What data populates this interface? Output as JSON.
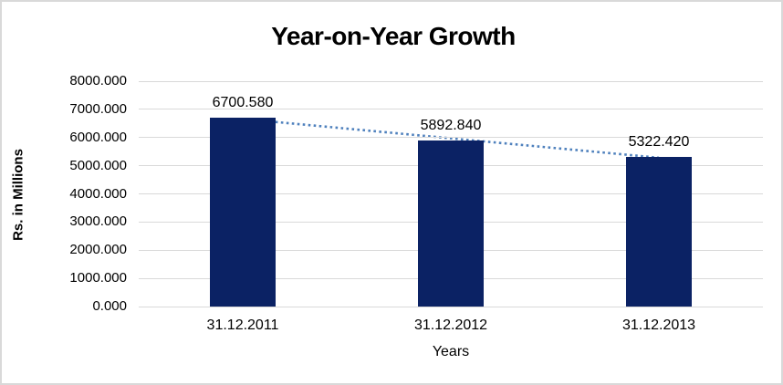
{
  "window": {
    "background": "#ffffff",
    "border_color": "#d9d9d9"
  },
  "chart_data": {
    "type": "bar",
    "title": "Year-on-Year Growth",
    "xlabel": "Years",
    "ylabel": "Rs. in Millions",
    "categories": [
      "31.12.2011",
      "31.12.2012",
      "31.12.2013"
    ],
    "values": [
      6700.58,
      5892.84,
      5322.42
    ],
    "value_labels": [
      "6700.580",
      "5892.840",
      "5322.420"
    ],
    "ylim": [
      0,
      8000
    ],
    "y_tick_step": 1000,
    "y_tick_labels": [
      "0.000",
      "1000.000",
      "2000.000",
      "3000.000",
      "4000.000",
      "5000.000",
      "6000.000",
      "7000.000",
      "8000.000"
    ],
    "grid": "horizontal-on",
    "legend": "none",
    "colors": {
      "bar": "#0b2264",
      "gridline": "#d9d9d9",
      "trendline": "#4f81bd",
      "text": "#000000"
    },
    "trendline": {
      "type": "linear",
      "style": "dotted"
    }
  }
}
